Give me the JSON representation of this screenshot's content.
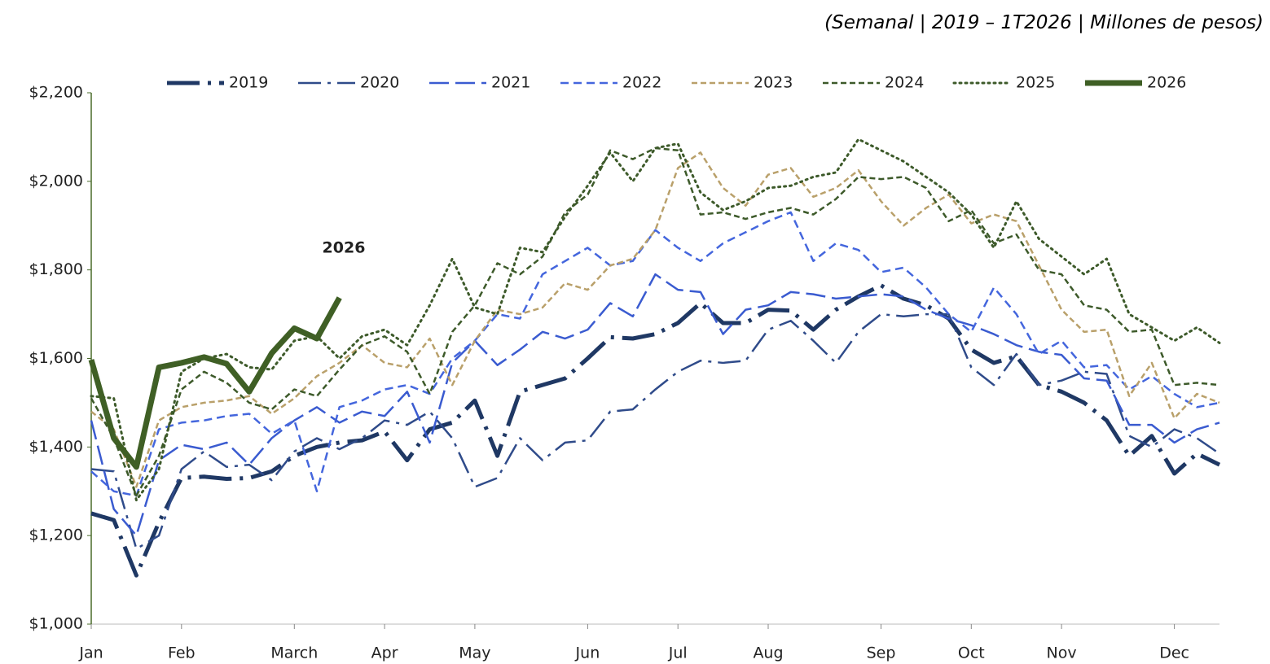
{
  "chart_data": {
    "type": "line",
    "subtitle": "(Semanal | 2019 – 1T2026 | Millones de pesos)",
    "annotation": "2026",
    "categories": [
      "Jan",
      null,
      null,
      null,
      "Feb",
      null,
      null,
      null,
      null,
      "March",
      null,
      null,
      null,
      "Apr",
      null,
      null,
      null,
      "May",
      null,
      null,
      null,
      null,
      "Jun",
      null,
      null,
      null,
      "Jul",
      null,
      null,
      null,
      "Aug",
      null,
      null,
      null,
      null,
      "Sep",
      null,
      null,
      null,
      "Oct",
      null,
      null,
      null,
      "Nov",
      null,
      null,
      null,
      null,
      "Dec",
      null,
      null
    ],
    "ylim": [
      1000,
      2200
    ],
    "yticks": [
      {
        "value": 1000,
        "label": "$1,000"
      },
      {
        "value": 1200,
        "label": "$1,200"
      },
      {
        "value": 1400,
        "label": "$1,400"
      },
      {
        "value": 1600,
        "label": "$1,600"
      },
      {
        "value": 1800,
        "label": "$1,800"
      },
      {
        "value": 2000,
        "label": "$2,000"
      },
      {
        "value": 2200,
        "label": "$2,200"
      }
    ],
    "legend": "top",
    "series": [
      {
        "name": "2019",
        "color": "#1f3864",
        "values": [
          1250,
          1235,
          1110,
          1230,
          1330,
          1333,
          1328,
          1330,
          1345,
          1380,
          1400,
          1410,
          1415,
          1435,
          1370,
          1440,
          1455,
          1505,
          1380,
          1525,
          1540,
          1555,
          1600,
          1648,
          1645,
          1655,
          1680,
          1725,
          1680,
          1680,
          1710,
          1708,
          1665,
          1710,
          1740,
          1765,
          1735,
          1720,
          1690,
          1620,
          1590,
          1605,
          1540,
          1525,
          1500,
          1460,
          1380,
          1425,
          1340,
          1385,
          1360
        ]
      },
      {
        "name": "2020",
        "color": "#2f4b8a",
        "values": [
          1350,
          1345,
          1170,
          1200,
          1350,
          1390,
          1355,
          1360,
          1325,
          1390,
          1420,
          1395,
          1420,
          1460,
          1450,
          1480,
          1420,
          1310,
          1330,
          1420,
          1370,
          1410,
          1415,
          1480,
          1485,
          1530,
          1570,
          1595,
          1590,
          1595,
          1665,
          1685,
          1640,
          1590,
          1660,
          1700,
          1695,
          1700,
          1700,
          1580,
          1540,
          1610,
          1540,
          1550,
          1570,
          1565,
          1425,
          1400,
          1440,
          1420,
          1385
        ]
      },
      {
        "name": "2021",
        "color": "#3a5bd0",
        "values": [
          1460,
          1260,
          1200,
          1370,
          1405,
          1395,
          1410,
          1360,
          1420,
          1460,
          1490,
          1455,
          1480,
          1470,
          1525,
          1410,
          1590,
          1640,
          1585,
          1620,
          1660,
          1645,
          1665,
          1725,
          1695,
          1790,
          1755,
          1750,
          1655,
          1710,
          1720,
          1750,
          1745,
          1735,
          1740,
          1745,
          1740,
          1710,
          1690,
          1675,
          1655,
          1630,
          1615,
          1608,
          1555,
          1550,
          1450,
          1450,
          1410,
          1440,
          1455
        ]
      },
      {
        "name": "2022",
        "color": "#4466dd",
        "values": [
          1345,
          1300,
          1290,
          1440,
          1455,
          1460,
          1470,
          1475,
          1430,
          1460,
          1300,
          1490,
          1505,
          1530,
          1540,
          1520,
          1600,
          1640,
          1700,
          1690,
          1790,
          1820,
          1850,
          1810,
          1820,
          1890,
          1850,
          1820,
          1860,
          1885,
          1910,
          1930,
          1820,
          1860,
          1845,
          1795,
          1805,
          1760,
          1700,
          1660,
          1760,
          1700,
          1610,
          1640,
          1580,
          1585,
          1530,
          1560,
          1520,
          1490,
          1500
        ]
      },
      {
        "name": "2023",
        "color": "#b9a06a",
        "values": [
          1480,
          1440,
          1310,
          1460,
          1490,
          1500,
          1505,
          1515,
          1475,
          1510,
          1560,
          1590,
          1630,
          1590,
          1580,
          1645,
          1540,
          1640,
          1710,
          1700,
          1715,
          1770,
          1755,
          1810,
          1825,
          1890,
          2030,
          2065,
          1985,
          1945,
          2015,
          2030,
          1965,
          1985,
          2025,
          1955,
          1900,
          1940,
          1970,
          1905,
          1925,
          1910,
          1810,
          1710,
          1660,
          1665,
          1515,
          1590,
          1465,
          1520,
          1500
        ]
      },
      {
        "name": "2024",
        "color": "#3d5a2a",
        "values": [
          1510,
          1420,
          1290,
          1380,
          1530,
          1570,
          1545,
          1500,
          1485,
          1530,
          1515,
          1575,
          1630,
          1650,
          1615,
          1520,
          1660,
          1720,
          1815,
          1790,
          1830,
          1930,
          1970,
          2070,
          2050,
          2075,
          2070,
          1925,
          1930,
          1915,
          1930,
          1940,
          1925,
          1960,
          2010,
          2005,
          2010,
          1985,
          1910,
          1935,
          1860,
          1880,
          1800,
          1790,
          1720,
          1710,
          1660,
          1665,
          1540,
          1545,
          1540
        ]
      },
      {
        "name": "2025",
        "color": "#3d5a2a",
        "values": [
          1515,
          1510,
          1280,
          1350,
          1570,
          1600,
          1610,
          1580,
          1575,
          1640,
          1650,
          1600,
          1650,
          1665,
          1630,
          1720,
          1825,
          1715,
          1700,
          1850,
          1840,
          1920,
          1990,
          2065,
          2000,
          2075,
          2085,
          1975,
          1935,
          1955,
          1985,
          1990,
          2010,
          2020,
          2095,
          2070,
          2045,
          2010,
          1975,
          1925,
          1850,
          1955,
          1870,
          1830,
          1790,
          1825,
          1700,
          1670,
          1640,
          1670,
          1635
        ]
      },
      {
        "name": "2026",
        "color": "#3f5f25",
        "values": [
          1597,
          1420,
          1355,
          1580,
          1590,
          1603,
          1588,
          1525,
          1612,
          1668,
          1645,
          1737,
          null,
          null,
          null,
          null,
          null,
          null,
          null,
          null,
          null,
          null,
          null,
          null,
          null,
          null,
          null,
          null,
          null,
          null,
          null,
          null,
          null,
          null,
          null,
          null,
          null,
          null,
          null,
          null,
          null,
          null,
          null,
          null,
          null,
          null,
          null,
          null,
          null,
          null,
          null
        ]
      }
    ]
  }
}
